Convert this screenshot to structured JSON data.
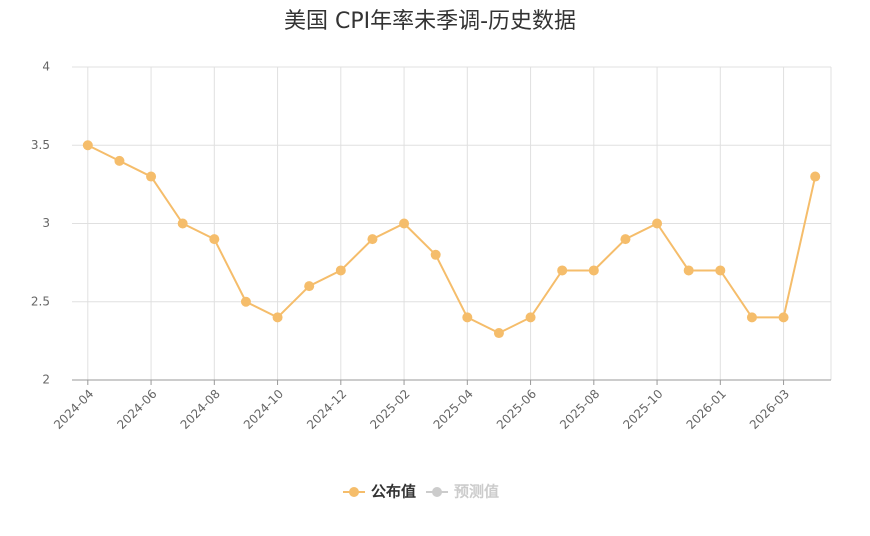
{
  "chart_data": {
    "type": "line",
    "title": "美国 CPI年率未季调-历史数据",
    "categories": [
      "2024-04",
      null,
      "2024-06",
      null,
      "2024-08",
      null,
      "2024-10",
      null,
      "2024-12",
      null,
      "2025-02",
      null,
      "2025-04",
      null,
      "2025-06",
      null,
      "2025-08",
      null,
      "2025-10",
      null,
      "2026-01",
      null,
      "2026-03",
      null
    ],
    "series": [
      {
        "name": "公布值",
        "color": "#f5bd6b",
        "values": [
          3.5,
          3.4,
          3.3,
          3.0,
          2.9,
          2.5,
          2.4,
          2.6,
          2.7,
          2.9,
          3.0,
          2.8,
          2.4,
          2.3,
          2.4,
          2.7,
          2.7,
          2.9,
          3.0,
          2.7,
          2.7,
          2.4,
          2.4,
          3.3
        ]
      },
      {
        "name": "预测值",
        "color": "#cccccc",
        "values": [
          null,
          null,
          null,
          null,
          null,
          null,
          null,
          null,
          null,
          null,
          null,
          null,
          null,
          null,
          null,
          null,
          null,
          null,
          null,
          null,
          null,
          null,
          null,
          null
        ]
      }
    ],
    "ylim": [
      2,
      4
    ],
    "yticks": [
      2,
      2.5,
      3,
      3.5,
      4
    ],
    "grid": true
  }
}
